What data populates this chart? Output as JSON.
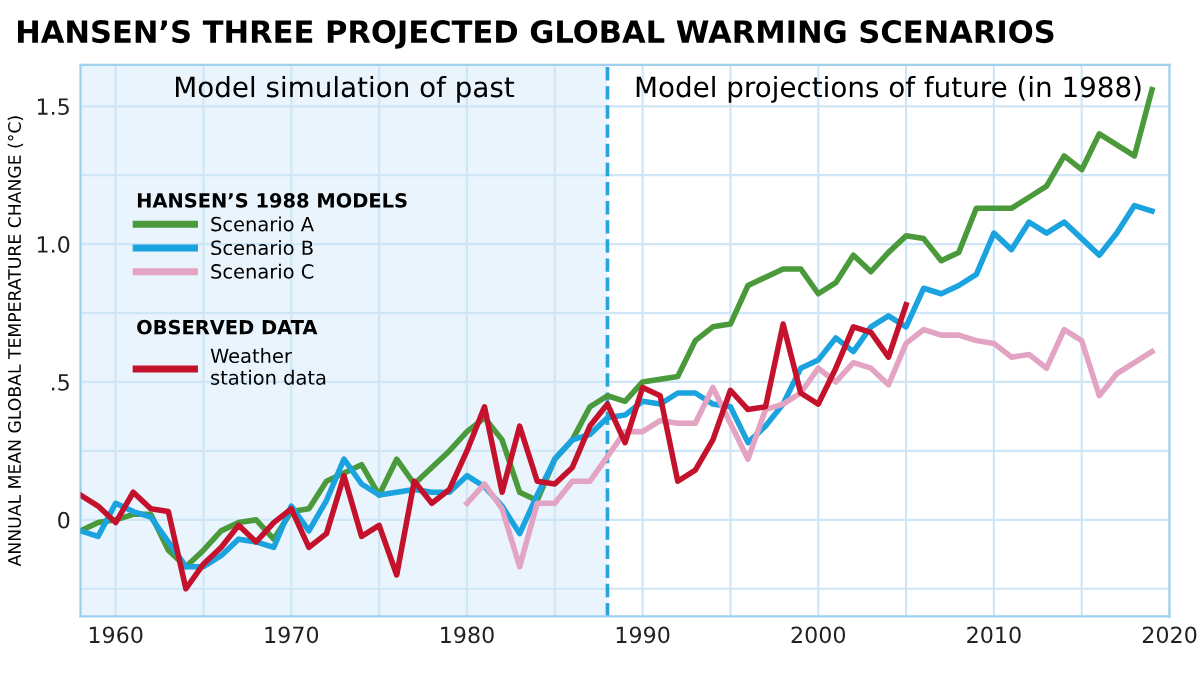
{
  "chart_data": {
    "type": "line",
    "title": "HANSEN’S THREE PROJECTED GLOBAL WARMING SCENARIOS",
    "ylabel": "ANNUAL MEAN GLOBAL TEMPERATURE CHANGE (°C)",
    "legend_title": "HANSEN’S 1988 MODELS",
    "annotations": [
      "Model projections of future (in 1988)",
      "OBSERVED DATA"
    ],
    "xlim": [
      1958,
      2020
    ],
    "ylim": [
      -0.35,
      1.65
    ],
    "xticks": [
      1960,
      {
        "value": 1965,
        "label": null
      },
      1970,
      {
        "value": 1975,
        "label": null
      },
      1980,
      {
        "value": 1985,
        "label": null
      },
      1990,
      {
        "value": 1995,
        "label": null
      },
      2000,
      {
        "value": 2005,
        "label": null
      },
      2010,
      {
        "value": 2015,
        "label": null
      },
      2020
    ],
    "yticks": [
      {
        "value": -0.25,
        "label": null
      },
      0,
      {
        "value": 0.25,
        "label": null
      },
      {
        "value": 0.5,
        "label": ".5"
      },
      {
        "value": 0.75,
        "label": null
      },
      {
        "value": 1.0,
        "label": "1.0"
      },
      {
        "value": 1.25,
        "label": null
      },
      {
        "value": 1.5,
        "label": "1.5"
      }
    ],
    "grid": true,
    "legend": "top left",
    "marker": "none",
    "line_style": "solid",
    "bands": [
      {
        "axis": "x",
        "from": 1958,
        "to": 1988,
        "label": "Model simulation of past",
        "color": "#e9f4fd"
      }
    ],
    "ref_lines": [
      {
        "axis": "x",
        "value": 1988,
        "color": "#29a3dc",
        "line_style": "dashed"
      }
    ],
    "series": [
      {
        "name": "Scenario A",
        "color": "#4a9a3c",
        "x": [
          1958,
          1959,
          1960,
          1961,
          1962,
          1963,
          1964,
          1965,
          1966,
          1967,
          1968,
          1969,
          1970,
          1971,
          1972,
          1973,
          1974,
          1975,
          1976,
          1977,
          1978,
          1979,
          1980,
          1981,
          1982,
          1983,
          1984,
          1985,
          1986,
          1987,
          1988,
          1989,
          1990,
          1991,
          1992,
          1993,
          1994,
          1995,
          1996,
          1997,
          1998,
          1999,
          2000,
          2001,
          2002,
          2003,
          2004,
          2005,
          2006,
          2007,
          2008,
          2009,
          2010,
          2011,
          2012,
          2013,
          2014,
          2015,
          2016,
          2017,
          2018,
          2019
        ],
        "values": [
          -0.04,
          -0.01,
          0.0,
          0.02,
          0.02,
          -0.11,
          -0.17,
          -0.11,
          -0.04,
          -0.01,
          0.0,
          -0.07,
          0.03,
          0.04,
          0.14,
          0.17,
          0.2,
          0.09,
          0.22,
          0.13,
          0.19,
          0.25,
          0.32,
          0.37,
          0.29,
          0.1,
          0.07,
          0.22,
          0.29,
          0.41,
          0.45,
          0.43,
          0.5,
          0.51,
          0.52,
          0.65,
          0.7,
          0.71,
          0.85,
          0.88,
          0.91,
          0.91,
          0.82,
          0.86,
          0.96,
          0.9,
          0.97,
          1.03,
          1.02,
          0.94,
          0.97,
          1.13,
          1.13,
          1.13,
          1.17,
          1.21,
          1.32,
          1.27,
          1.4,
          1.36,
          1.32,
          1.56
        ]
      },
      {
        "name": "Scenario B",
        "color": "#1ba3e0",
        "x": [
          1958,
          1959,
          1960,
          1961,
          1962,
          1963,
          1964,
          1965,
          1966,
          1967,
          1968,
          1969,
          1970,
          1971,
          1972,
          1973,
          1974,
          1975,
          1976,
          1977,
          1978,
          1979,
          1980,
          1981,
          1982,
          1983,
          1984,
          1985,
          1986,
          1987,
          1988,
          1989,
          1990,
          1991,
          1992,
          1993,
          1994,
          1995,
          1996,
          1997,
          1998,
          1999,
          2000,
          2001,
          2002,
          2003,
          2004,
          2005,
          2006,
          2007,
          2008,
          2009,
          2010,
          2011,
          2012,
          2013,
          2014,
          2015,
          2016,
          2017,
          2018,
          2019
        ],
        "values": [
          -0.04,
          -0.06,
          0.06,
          0.03,
          0.01,
          -0.08,
          -0.17,
          -0.17,
          -0.13,
          -0.07,
          -0.08,
          -0.1,
          0.05,
          -0.04,
          0.07,
          0.22,
          0.13,
          0.09,
          0.1,
          0.11,
          0.1,
          0.1,
          0.16,
          0.12,
          0.05,
          -0.05,
          0.09,
          0.22,
          0.29,
          0.31,
          0.37,
          0.38,
          0.43,
          0.42,
          0.46,
          0.46,
          0.42,
          0.41,
          0.28,
          0.34,
          0.42,
          0.55,
          0.58,
          0.66,
          0.61,
          0.7,
          0.74,
          0.7,
          0.84,
          0.82,
          0.85,
          0.89,
          1.04,
          0.98,
          1.08,
          1.04,
          1.08,
          1.02,
          0.96,
          1.04,
          1.14,
          1.12
        ]
      },
      {
        "name": "Scenario C",
        "color": "#e3a3c2",
        "x": [
          1980,
          1981,
          1982,
          1983,
          1984,
          1985,
          1986,
          1987,
          1988,
          1989,
          1990,
          1991,
          1992,
          1993,
          1994,
          1995,
          1996,
          1997,
          1998,
          1999,
          2000,
          2001,
          2002,
          2003,
          2004,
          2005,
          2006,
          2007,
          2008,
          2009,
          2010,
          2011,
          2012,
          2013,
          2014,
          2015,
          2016,
          2017,
          2018,
          2019
        ],
        "values": [
          0.06,
          0.13,
          0.04,
          -0.17,
          0.06,
          0.06,
          0.14,
          0.14,
          0.23,
          0.32,
          0.32,
          0.36,
          0.35,
          0.35,
          0.48,
          0.35,
          0.22,
          0.4,
          0.42,
          0.46,
          0.55,
          0.5,
          0.57,
          0.55,
          0.49,
          0.64,
          0.69,
          0.67,
          0.67,
          0.65,
          0.64,
          0.59,
          0.6,
          0.55,
          0.69,
          0.65,
          0.45,
          0.53,
          0.57,
          0.61
        ]
      },
      {
        "name": "Weather\nstation data",
        "color": "#c4122c",
        "x": [
          1958,
          1959,
          1960,
          1961,
          1962,
          1963,
          1964,
          1965,
          1966,
          1967,
          1968,
          1969,
          1970,
          1971,
          1972,
          1973,
          1974,
          1975,
          1976,
          1977,
          1978,
          1979,
          1980,
          1981,
          1982,
          1983,
          1984,
          1985,
          1986,
          1987,
          1988,
          1989,
          1990,
          1991,
          1992,
          1993,
          1994,
          1995,
          1996,
          1997,
          1998,
          1999,
          2000,
          2001,
          2002,
          2003,
          2004,
          2005
        ],
        "values": [
          0.09,
          0.05,
          -0.01,
          0.1,
          0.04,
          0.03,
          -0.25,
          -0.16,
          -0.1,
          -0.02,
          -0.08,
          -0.01,
          0.04,
          -0.1,
          -0.05,
          0.16,
          -0.06,
          -0.02,
          -0.2,
          0.14,
          0.06,
          0.11,
          0.25,
          0.41,
          0.1,
          0.34,
          0.14,
          0.13,
          0.19,
          0.34,
          0.42,
          0.28,
          0.48,
          0.45,
          0.14,
          0.18,
          0.29,
          0.47,
          0.4,
          0.41,
          0.71,
          0.46,
          0.42,
          0.55,
          0.7,
          0.68,
          0.59,
          0.78
        ]
      }
    ]
  }
}
